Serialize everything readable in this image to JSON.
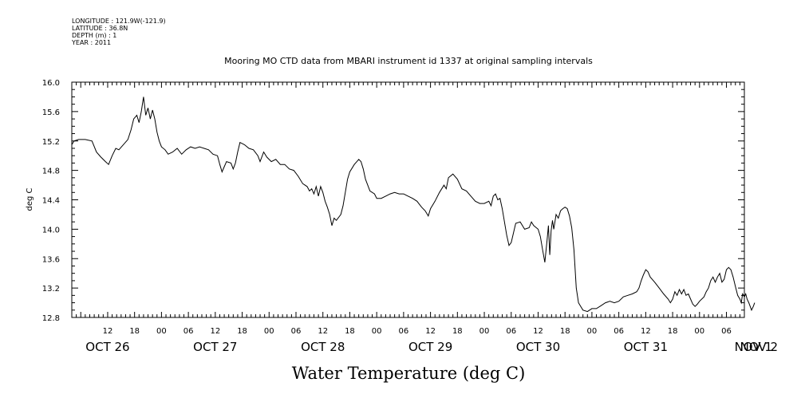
{
  "meta": {
    "longitude": "LONGITUDE : 121.9W(-121.9)",
    "latitude": "LATITUDE : 36.8N",
    "depth": "DEPTH (m) : 1",
    "year": "YEAR : 2011"
  },
  "chart_data": {
    "type": "line",
    "title": "Mooring MO CTD data from MBARI instrument id 1337 at original sampling intervals",
    "xlabel": "Water Temperature (deg C)",
    "ylabel": "deg C",
    "ylim": [
      12.8,
      16.0
    ],
    "yticks": [
      "12.8",
      "13.2",
      "13.6",
      "14.0",
      "14.4",
      "14.8",
      "15.2",
      "15.6",
      "16.0"
    ],
    "xlim_hours": [
      4,
      154
    ],
    "hour_ticks": [
      {
        "h": 12,
        "label": "12"
      },
      {
        "h": 18,
        "label": "18"
      },
      {
        "h": 24,
        "label": "00"
      },
      {
        "h": 30,
        "label": "06"
      },
      {
        "h": 36,
        "label": "12"
      },
      {
        "h": 42,
        "label": "18"
      },
      {
        "h": 48,
        "label": "00"
      },
      {
        "h": 54,
        "label": "06"
      },
      {
        "h": 60,
        "label": "12"
      },
      {
        "h": 66,
        "label": "18"
      },
      {
        "h": 72,
        "label": "00"
      },
      {
        "h": 78,
        "label": "06"
      },
      {
        "h": 84,
        "label": "12"
      },
      {
        "h": 90,
        "label": "18"
      },
      {
        "h": 96,
        "label": "00"
      },
      {
        "h": 102,
        "label": "06"
      },
      {
        "h": 108,
        "label": "12"
      },
      {
        "h": 114,
        "label": "18"
      },
      {
        "h": 120,
        "label": "00"
      },
      {
        "h": 126,
        "label": "06"
      },
      {
        "h": 132,
        "label": "12"
      },
      {
        "h": 138,
        "label": "18"
      },
      {
        "h": 144,
        "label": "00"
      },
      {
        "h": 150,
        "label": "06"
      }
    ],
    "day_labels": [
      {
        "h": 12,
        "label": "OCT 26"
      },
      {
        "h": 36,
        "label": "OCT 27"
      },
      {
        "h": 60,
        "label": "OCT 28"
      },
      {
        "h": 84,
        "label": "OCT 29"
      },
      {
        "h": 108,
        "label": "OCT 30"
      },
      {
        "h": 132,
        "label": "OCT 31"
      },
      {
        "h": 156,
        "label": "NOV  1"
      },
      {
        "h": 180,
        "label": "NOV  2"
      }
    ],
    "series": [
      {
        "color": "#000000",
        "points": [
          [
            4.0,
            15.15
          ],
          [
            4.5,
            15.2
          ],
          [
            5.5,
            15.22
          ],
          [
            7.0,
            15.22
          ],
          [
            8.5,
            15.2
          ],
          [
            9.5,
            15.05
          ],
          [
            10.5,
            14.98
          ],
          [
            11.5,
            14.92
          ],
          [
            12.2,
            14.88
          ],
          [
            13.0,
            15.0
          ],
          [
            13.8,
            15.1
          ],
          [
            14.5,
            15.08
          ],
          [
            15.5,
            15.15
          ],
          [
            16.5,
            15.22
          ],
          [
            17.2,
            15.35
          ],
          [
            17.8,
            15.5
          ],
          [
            18.5,
            15.55
          ],
          [
            19.0,
            15.45
          ],
          [
            19.5,
            15.6
          ],
          [
            20.0,
            15.8
          ],
          [
            20.5,
            15.55
          ],
          [
            21.0,
            15.65
          ],
          [
            21.5,
            15.5
          ],
          [
            22.0,
            15.62
          ],
          [
            22.5,
            15.5
          ],
          [
            23.0,
            15.32
          ],
          [
            23.5,
            15.2
          ],
          [
            24.0,
            15.12
          ],
          [
            24.8,
            15.08
          ],
          [
            25.5,
            15.02
          ],
          [
            26.5,
            15.05
          ],
          [
            27.5,
            15.1
          ],
          [
            28.5,
            15.02
          ],
          [
            29.5,
            15.08
          ],
          [
            30.5,
            15.12
          ],
          [
            31.5,
            15.1
          ],
          [
            32.5,
            15.12
          ],
          [
            33.5,
            15.1
          ],
          [
            34.5,
            15.08
          ],
          [
            35.5,
            15.02
          ],
          [
            36.5,
            15.0
          ],
          [
            37.0,
            14.88
          ],
          [
            37.5,
            14.78
          ],
          [
            38.0,
            14.85
          ],
          [
            38.5,
            14.92
          ],
          [
            39.5,
            14.9
          ],
          [
            40.0,
            14.82
          ],
          [
            40.5,
            14.9
          ],
          [
            41.0,
            15.05
          ],
          [
            41.5,
            15.18
          ],
          [
            42.5,
            15.15
          ],
          [
            43.5,
            15.1
          ],
          [
            44.5,
            15.08
          ],
          [
            45.5,
            15.0
          ],
          [
            46.0,
            14.92
          ],
          [
            46.8,
            15.05
          ],
          [
            47.5,
            14.98
          ],
          [
            48.5,
            14.92
          ],
          [
            49.5,
            14.95
          ],
          [
            50.5,
            14.88
          ],
          [
            51.5,
            14.88
          ],
          [
            52.5,
            14.82
          ],
          [
            53.5,
            14.8
          ],
          [
            54.5,
            14.72
          ],
          [
            55.5,
            14.62
          ],
          [
            56.5,
            14.58
          ],
          [
            57.0,
            14.52
          ],
          [
            57.5,
            14.55
          ],
          [
            58.0,
            14.48
          ],
          [
            58.5,
            14.58
          ],
          [
            59.0,
            14.45
          ],
          [
            59.5,
            14.58
          ],
          [
            60.0,
            14.5
          ],
          [
            60.5,
            14.38
          ],
          [
            61.0,
            14.3
          ],
          [
            61.5,
            14.2
          ],
          [
            62.0,
            14.05
          ],
          [
            62.5,
            14.15
          ],
          [
            63.0,
            14.12
          ],
          [
            64.0,
            14.2
          ],
          [
            64.5,
            14.32
          ],
          [
            65.0,
            14.5
          ],
          [
            65.5,
            14.68
          ],
          [
            66.0,
            14.78
          ],
          [
            67.0,
            14.88
          ],
          [
            68.0,
            14.95
          ],
          [
            68.5,
            14.92
          ],
          [
            69.0,
            14.82
          ],
          [
            69.5,
            14.68
          ],
          [
            70.5,
            14.52
          ],
          [
            71.5,
            14.48
          ],
          [
            72.0,
            14.42
          ],
          [
            73.0,
            14.42
          ],
          [
            74.0,
            14.45
          ],
          [
            75.0,
            14.48
          ],
          [
            76.0,
            14.5
          ],
          [
            77.0,
            14.48
          ],
          [
            78.0,
            14.48
          ],
          [
            79.0,
            14.45
          ],
          [
            80.0,
            14.42
          ],
          [
            81.0,
            14.38
          ],
          [
            82.0,
            14.3
          ],
          [
            82.8,
            14.25
          ],
          [
            83.5,
            14.18
          ],
          [
            84.0,
            14.28
          ],
          [
            85.0,
            14.38
          ],
          [
            86.0,
            14.5
          ],
          [
            87.0,
            14.6
          ],
          [
            87.5,
            14.55
          ],
          [
            88.0,
            14.7
          ],
          [
            89.0,
            14.75
          ],
          [
            90.0,
            14.68
          ],
          [
            91.0,
            14.55
          ],
          [
            92.0,
            14.52
          ],
          [
            93.0,
            14.45
          ],
          [
            94.0,
            14.38
          ],
          [
            95.0,
            14.35
          ],
          [
            96.0,
            14.35
          ],
          [
            97.0,
            14.38
          ],
          [
            97.5,
            14.32
          ],
          [
            98.0,
            14.45
          ],
          [
            98.5,
            14.48
          ],
          [
            99.0,
            14.4
          ],
          [
            99.5,
            14.42
          ],
          [
            100.0,
            14.28
          ],
          [
            100.5,
            14.1
          ],
          [
            101.0,
            13.92
          ],
          [
            101.5,
            13.78
          ],
          [
            102.0,
            13.82
          ],
          [
            102.5,
            13.95
          ],
          [
            103.0,
            14.08
          ],
          [
            104.0,
            14.1
          ],
          [
            105.0,
            14.0
          ],
          [
            106.0,
            14.02
          ],
          [
            106.5,
            14.1
          ],
          [
            107.0,
            14.05
          ],
          [
            108.0,
            14.0
          ],
          [
            108.5,
            13.9
          ],
          [
            109.0,
            13.72
          ],
          [
            109.5,
            13.55
          ],
          [
            110.0,
            13.85
          ],
          [
            110.3,
            14.05
          ],
          [
            110.6,
            13.65
          ],
          [
            110.9,
            13.98
          ],
          [
            111.2,
            14.12
          ],
          [
            111.5,
            14.0
          ],
          [
            112.0,
            14.2
          ],
          [
            112.5,
            14.15
          ],
          [
            113.0,
            14.25
          ],
          [
            113.5,
            14.28
          ],
          [
            114.0,
            14.3
          ],
          [
            114.5,
            14.28
          ],
          [
            115.0,
            14.18
          ],
          [
            115.5,
            14.02
          ],
          [
            116.0,
            13.72
          ],
          [
            116.5,
            13.2
          ],
          [
            117.0,
            13.0
          ],
          [
            117.5,
            12.95
          ],
          [
            118.0,
            12.9
          ],
          [
            119.0,
            12.88
          ],
          [
            120.0,
            12.92
          ],
          [
            121.0,
            12.92
          ],
          [
            122.0,
            12.96
          ],
          [
            123.0,
            13.0
          ],
          [
            124.0,
            13.02
          ],
          [
            125.0,
            13.0
          ],
          [
            126.0,
            13.02
          ],
          [
            127.0,
            13.08
          ],
          [
            128.0,
            13.1
          ],
          [
            129.0,
            13.12
          ],
          [
            130.0,
            13.15
          ],
          [
            130.5,
            13.2
          ],
          [
            131.0,
            13.3
          ],
          [
            131.5,
            13.38
          ],
          [
            132.0,
            13.45
          ],
          [
            132.5,
            13.42
          ],
          [
            133.0,
            13.35
          ],
          [
            134.0,
            13.28
          ],
          [
            135.0,
            13.2
          ],
          [
            136.0,
            13.12
          ],
          [
            137.0,
            13.05
          ],
          [
            137.5,
            13.0
          ],
          [
            138.0,
            13.05
          ],
          [
            138.5,
            13.15
          ],
          [
            139.0,
            13.1
          ],
          [
            139.5,
            13.18
          ],
          [
            140.0,
            13.12
          ],
          [
            140.5,
            13.18
          ],
          [
            141.0,
            13.1
          ],
          [
            141.5,
            13.12
          ],
          [
            142.0,
            13.05
          ],
          [
            142.5,
            12.98
          ],
          [
            143.0,
            12.95
          ],
          [
            143.5,
            12.98
          ],
          [
            144.0,
            13.02
          ],
          [
            145.0,
            13.08
          ],
          [
            145.5,
            13.15
          ],
          [
            146.0,
            13.2
          ],
          [
            146.5,
            13.3
          ],
          [
            147.0,
            13.35
          ],
          [
            147.5,
            13.28
          ],
          [
            148.0,
            13.35
          ],
          [
            148.5,
            13.4
          ],
          [
            149.0,
            13.28
          ],
          [
            149.5,
            13.32
          ],
          [
            150.0,
            13.45
          ],
          [
            150.5,
            13.48
          ],
          [
            151.0,
            13.45
          ],
          [
            151.5,
            13.35
          ],
          [
            152.0,
            13.22
          ],
          [
            152.5,
            13.1
          ],
          [
            153.0,
            13.05
          ],
          [
            153.3,
            13.0
          ],
          [
            153.6,
            13.12
          ],
          [
            154.0,
            13.08
          ],
          [
            154.3,
            13.12
          ],
          [
            154.6,
            13.05
          ],
          [
            155.0,
            13.0
          ],
          [
            155.3,
            12.95
          ],
          [
            155.6,
            12.9
          ],
          [
            156.0,
            12.95
          ],
          [
            156.3,
            13.0
          ]
        ]
      }
    ]
  }
}
